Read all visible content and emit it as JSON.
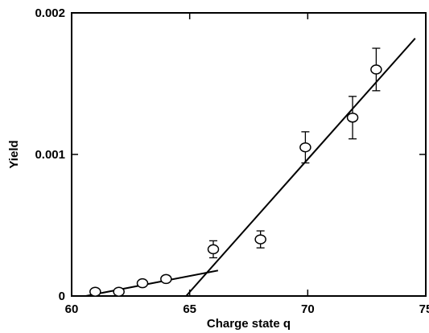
{
  "chart_data": {
    "type": "scatter",
    "title": "",
    "xlabel": "Charge state q",
    "ylabel": "Yield",
    "xlim": [
      60,
      75
    ],
    "ylim": [
      0,
      0.002
    ],
    "x_ticks": [
      {
        "value": 60,
        "label": "60"
      },
      {
        "value": 65,
        "label": "65"
      },
      {
        "value": 70,
        "label": "70"
      },
      {
        "value": 75,
        "label": "75"
      }
    ],
    "y_ticks": [
      {
        "value": 0,
        "label": "0"
      },
      {
        "value": 0.001,
        "label": "0.001"
      },
      {
        "value": 0.002,
        "label": "0.002"
      }
    ],
    "grid": false,
    "series": [
      {
        "points": [
          {
            "x": 61,
            "y": 3e-05,
            "err": 0
          },
          {
            "x": 62,
            "y": 3e-05,
            "err": 0
          },
          {
            "x": 63,
            "y": 9e-05,
            "err": 0
          },
          {
            "x": 64,
            "y": 0.00012,
            "err": 0
          },
          {
            "x": 66,
            "y": 0.00033,
            "err": 6e-05
          },
          {
            "x": 68,
            "y": 0.0004,
            "err": 6e-05
          },
          {
            "x": 69.9,
            "y": 0.00105,
            "err": 0.00011
          },
          {
            "x": 71.9,
            "y": 0.00126,
            "err": 0.00015
          },
          {
            "x": 72.9,
            "y": 0.0016,
            "err": 0.00015
          }
        ]
      }
    ],
    "fit_lines": [
      {
        "x1": 60.6,
        "y1": 0.0,
        "x2": 66.2,
        "y2": 0.00018
      },
      {
        "x1": 64.85,
        "y1": 0.0,
        "x2": 74.55,
        "y2": 0.00182
      }
    ]
  }
}
